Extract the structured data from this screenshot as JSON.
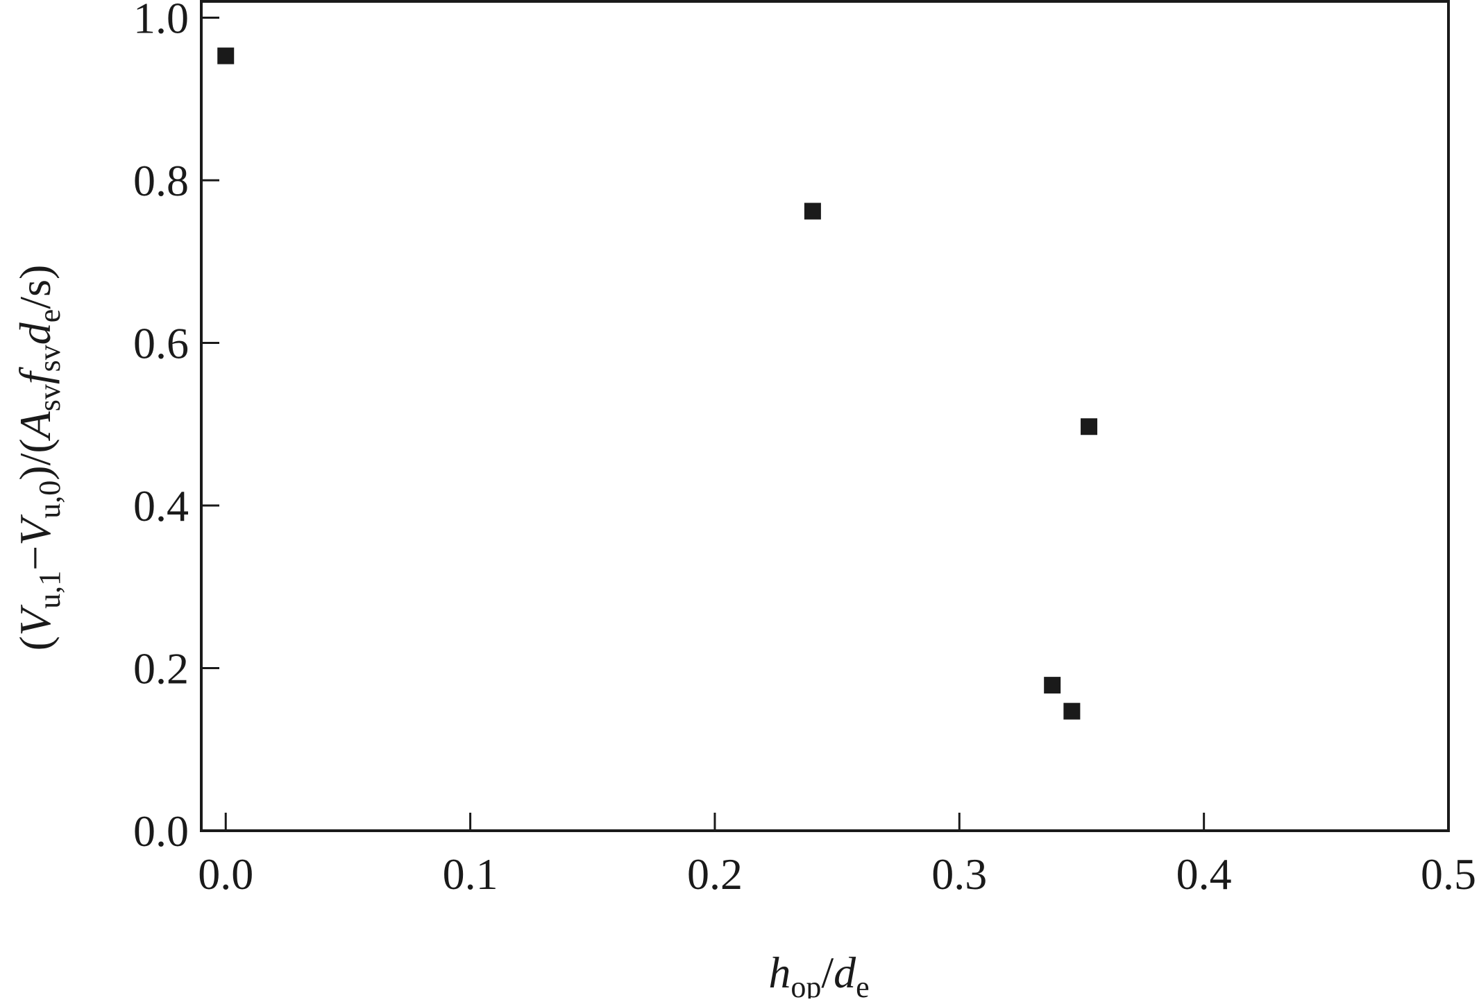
{
  "chart_data": {
    "type": "scatter",
    "title": "",
    "x_axis": {
      "label_main_1": "h",
      "label_sub_1": "op",
      "label_slash": "/",
      "label_main_2": "d",
      "label_sub_2": "e",
      "range": [
        -0.01,
        0.5
      ],
      "ticks": [
        0.0,
        0.1,
        0.2,
        0.3,
        0.4,
        0.5
      ],
      "tick_labels": [
        "0.0",
        "0.1",
        "0.2",
        "0.3",
        "0.4",
        "0.5"
      ]
    },
    "y_axis": {
      "label_p1": "(",
      "label_v1": "V",
      "label_s1": "u,1",
      "label_minus": "−",
      "label_v2": "V",
      "label_s2": "u,0",
      "label_p2": ")/(",
      "label_a": "A",
      "label_s3": "sv",
      "label_f": "f",
      "label_s4": "sv",
      "label_d": "d",
      "label_s5": "e",
      "label_end": "/s)",
      "range": [
        0.0,
        1.02
      ],
      "ticks": [
        0.0,
        0.2,
        0.4,
        0.6,
        0.8,
        1.0
      ],
      "tick_labels": [
        "0.0",
        "0.2",
        "0.4",
        "0.6",
        "0.8",
        "1.0"
      ]
    },
    "grid": false,
    "marker": "square",
    "marker_color": "#1a1a1a",
    "points": [
      {
        "x": 0.0,
        "y": 0.953
      },
      {
        "x": 0.24,
        "y": 0.762
      },
      {
        "x": 0.353,
        "y": 0.497
      },
      {
        "x": 0.338,
        "y": 0.179
      },
      {
        "x": 0.346,
        "y": 0.147
      }
    ]
  }
}
